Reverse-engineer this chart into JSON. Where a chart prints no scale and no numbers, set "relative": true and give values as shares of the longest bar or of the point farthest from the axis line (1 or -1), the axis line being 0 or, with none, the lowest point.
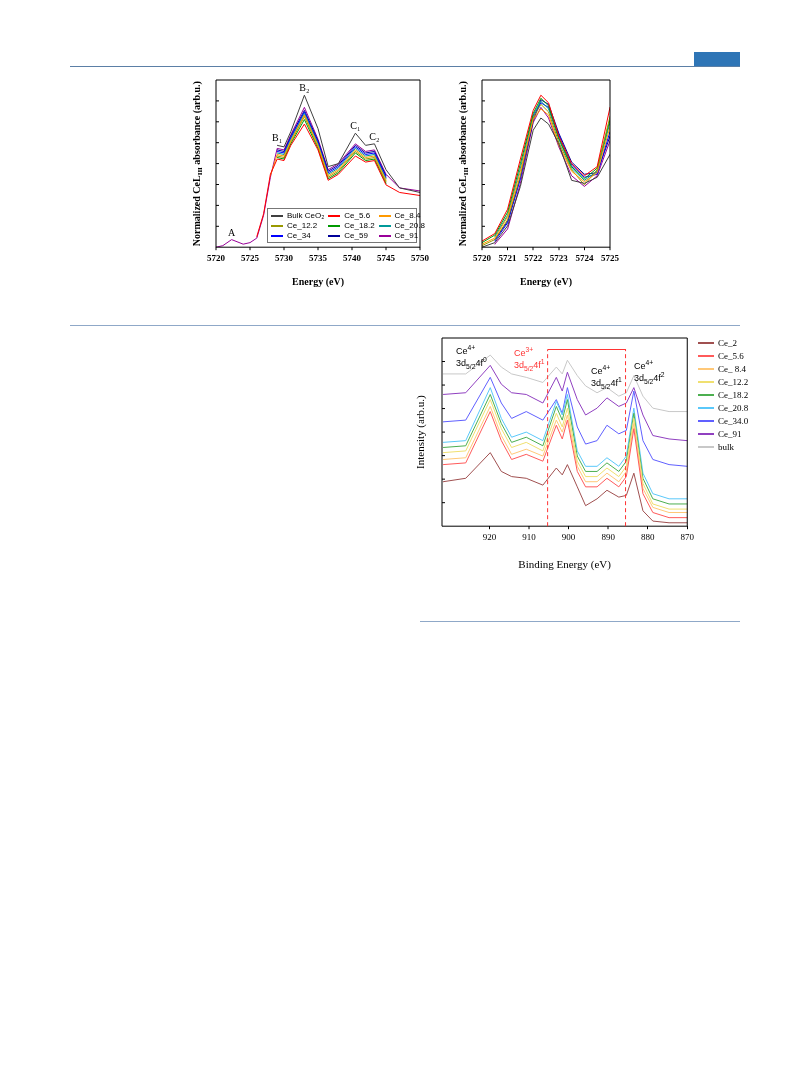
{
  "chart_data": [
    {
      "type": "line",
      "relative": true,
      "xlabel": "Energy (eV)",
      "ylabel": "Normalized CeL$_{III}$ absorbance (arb.u.)",
      "xlim": [
        5720,
        5750
      ],
      "xticks": [
        5720,
        5725,
        5730,
        5735,
        5740,
        5745,
        5750
      ],
      "tick_labels": "x",
      "legend": "bottom right",
      "x": [
        5720,
        5721,
        5722.3,
        5724,
        5725,
        5726,
        5727,
        5728,
        5729,
        5730,
        5731,
        5733,
        5735,
        5736.5,
        5738,
        5740.5,
        5742,
        5743.3,
        5745,
        5747,
        5750
      ],
      "annotations": [
        {
          "text": "A",
          "x": 5722.3,
          "y": 0.05
        },
        {
          "text": "B₁",
          "x": 5729,
          "y": 0.67
        },
        {
          "text": "B₂",
          "x": 5733,
          "y": 1.0
        },
        {
          "text": "C₁",
          "x": 5740.5,
          "y": 0.75
        },
        {
          "text": "C₂",
          "x": 5743.3,
          "y": 0.68
        }
      ],
      "series": [
        {
          "name": "Bulk CeO₂",
          "color": "#404040",
          "values": [
            null,
            null,
            null,
            null,
            null,
            null,
            null,
            null,
            0.67,
            0.66,
            0.76,
            1.0,
            0.78,
            0.53,
            0.55,
            0.75,
            0.67,
            0.68,
            0.51,
            0.39,
            0.36
          ]
        },
        {
          "name": "Ce_5.6",
          "color": "#ff0000",
          "values": [
            null,
            null,
            null,
            null,
            null,
            0.07,
            0.22,
            0.48,
            0.58,
            0.57,
            0.67,
            0.81,
            0.64,
            0.44,
            0.48,
            0.6,
            0.56,
            0.57,
            0.41,
            0.36,
            0.34
          ]
        },
        {
          "name": "Ce_8.4",
          "color": "#ff9900",
          "values": [
            null,
            null,
            null,
            null,
            null,
            null,
            null,
            0.47,
            0.61,
            0.6,
            0.7,
            0.87,
            0.67,
            0.47,
            0.51,
            0.64,
            0.59,
            0.6,
            0.44,
            null,
            null
          ]
        },
        {
          "name": "Ce_12.2",
          "color": "#999900",
          "values": [
            null,
            null,
            null,
            null,
            null,
            null,
            null,
            null,
            0.6,
            0.59,
            0.69,
            0.86,
            0.66,
            0.46,
            0.5,
            0.63,
            0.58,
            0.59,
            0.43,
            null,
            null
          ]
        },
        {
          "name": "Ce_18.2",
          "color": "#009900",
          "values": [
            null,
            null,
            null,
            null,
            null,
            null,
            null,
            null,
            0.59,
            0.58,
            0.68,
            0.84,
            0.65,
            0.45,
            0.49,
            0.62,
            0.57,
            0.58,
            0.42,
            null,
            null
          ]
        },
        {
          "name": "Ce_20.8",
          "color": "#009999",
          "values": [
            null,
            null,
            null,
            null,
            null,
            null,
            null,
            null,
            0.62,
            0.61,
            0.71,
            0.88,
            0.68,
            0.48,
            0.52,
            0.65,
            0.6,
            0.61,
            0.45,
            null,
            null
          ]
        },
        {
          "name": "Ce_34",
          "color": "#0000ff",
          "values": [
            null,
            null,
            null,
            null,
            null,
            null,
            null,
            null,
            0.63,
            0.62,
            0.72,
            0.89,
            0.69,
            0.49,
            0.53,
            0.66,
            0.61,
            0.62,
            0.46,
            null,
            null
          ]
        },
        {
          "name": "Ce_59",
          "color": "#000099",
          "values": [
            null,
            null,
            null,
            null,
            null,
            null,
            null,
            null,
            0.64,
            0.63,
            0.73,
            0.9,
            0.7,
            0.5,
            0.54,
            0.67,
            0.62,
            0.63,
            0.47,
            null,
            null
          ]
        },
        {
          "name": "Ce_91",
          "color": "#990099",
          "values": [
            0,
            0.01,
            0.05,
            0.02,
            0.03,
            0.06,
            0.21,
            0.46,
            0.65,
            0.64,
            0.74,
            0.92,
            0.71,
            0.51,
            0.55,
            0.68,
            0.63,
            0.64,
            0.48,
            0.39,
            0.37
          ]
        }
      ]
    },
    {
      "type": "line",
      "relative": true,
      "xlabel": "Energy (eV)",
      "ylabel": "Normalized CeL$_{III}$ absorbance (arb.u.)",
      "xlim": [
        5720,
        5725
      ],
      "xticks": [
        5720,
        5721,
        5722,
        5723,
        5724,
        5725
      ],
      "tick_labels": "x",
      "x": [
        5720,
        5720.5,
        5721,
        5721.5,
        5722,
        5722.3,
        5722.6,
        5723,
        5723.5,
        5724,
        5724.5,
        5725
      ],
      "series": [
        {
          "color": "#404040",
          "values": [
            0,
            0.03,
            0.14,
            0.4,
            0.77,
            0.85,
            0.81,
            0.68,
            0.44,
            0.42,
            0.46,
            0.61
          ]
        },
        {
          "color": "#ff0000",
          "values": [
            0.04,
            0.09,
            0.25,
            0.58,
            0.9,
            1.0,
            0.95,
            0.73,
            0.55,
            0.47,
            0.53,
            0.92
          ]
        },
        {
          "color": "#ff9900",
          "values": [
            0.02,
            0.06,
            0.2,
            0.5,
            0.84,
            0.91,
            0.87,
            0.67,
            0.5,
            0.43,
            0.49,
            0.79
          ]
        },
        {
          "color": "#999900",
          "values": [
            0.01,
            0.05,
            0.18,
            0.47,
            0.85,
            0.94,
            0.89,
            0.69,
            0.51,
            0.41,
            0.51,
            0.86
          ]
        },
        {
          "color": "#009900",
          "values": [
            0.03,
            0.08,
            0.23,
            0.55,
            0.88,
            0.98,
            0.93,
            0.72,
            0.53,
            0.45,
            0.52,
            0.84
          ]
        },
        {
          "color": "#009999",
          "values": [
            null,
            0.07,
            0.21,
            0.52,
            0.87,
            0.96,
            0.91,
            0.71,
            0.52,
            0.44,
            0.5,
            0.82
          ]
        },
        {
          "color": "#0000ff",
          "values": [
            null,
            0.04,
            0.16,
            0.45,
            0.86,
            0.95,
            0.92,
            0.74,
            0.54,
            0.46,
            0.48,
            0.76
          ]
        },
        {
          "color": "#000099",
          "values": [
            null,
            0.05,
            0.17,
            0.46,
            0.83,
            0.97,
            0.94,
            0.75,
            0.56,
            0.48,
            0.49,
            0.73
          ]
        },
        {
          "color": "#990099",
          "values": [
            null,
            0.02,
            0.12,
            0.42,
            0.82,
            0.92,
            0.85,
            0.66,
            0.47,
            0.4,
            0.47,
            0.7
          ]
        }
      ]
    },
    {
      "type": "line",
      "relative": true,
      "xlabel": "Binding Energy (eV)",
      "ylabel": "Intensity (arb.u.)",
      "xlim": [
        932,
        870
      ],
      "xticks": [
        920,
        910,
        900,
        890,
        880,
        870
      ],
      "tick_labels": "x",
      "legend": "right",
      "x": [
        931.7,
        926,
        919.8,
        917,
        914.4,
        910.7,
        906.5,
        903.1,
        901.6,
        900.3,
        897.8,
        895.7,
        892.8,
        890.3,
        887.3,
        885.4,
        883.5,
        881.2,
        878.7,
        874.6,
        870
      ],
      "ref_lines": [
        {
          "axis": "x",
          "value": 905.3,
          "color": "#ff3333",
          "line_style": "dashed",
          "label": "Ce$^{3+}$ 3d$_{5/2}$4f$^{1}$"
        },
        {
          "axis": "x",
          "value": 885.6,
          "color": "#ff3333",
          "line_style": "dashed"
        }
      ],
      "annotations": [
        "Ce$^{4+}$ 3d$_{5/2}$4f$^{0}$",
        "Ce$^{4+}$ 3d$_{5/2}$4f$^{1}$",
        "Ce$^{4+}$ 3d$_{5/2}$4f$^{2}$"
      ],
      "series": [
        {
          "name": "Ce_2",
          "color": "#a05050",
          "values": [
            0.26,
            0.28,
            0.43,
            0.32,
            0.29,
            0.28,
            0.24,
            0.34,
            0.3,
            0.36,
            0.23,
            0.12,
            0.16,
            0.21,
            0.17,
            0.18,
            0.31,
            0.09,
            0.03,
            0.02,
            0.02
          ]
        },
        {
          "name": "Ce_5.6",
          "color": "#ff5a5a",
          "values": [
            0.36,
            0.37,
            0.67,
            0.5,
            0.39,
            0.42,
            0.38,
            0.59,
            0.51,
            0.62,
            0.32,
            0.23,
            0.23,
            0.28,
            0.23,
            0.29,
            0.57,
            0.19,
            0.08,
            0.05,
            0.05
          ]
        },
        {
          "name": "Ce_ 8.4",
          "color": "#ffc878",
          "values": [
            0.39,
            0.4,
            0.7,
            0.53,
            0.42,
            0.45,
            0.41,
            0.62,
            0.55,
            0.65,
            0.35,
            0.26,
            0.26,
            0.31,
            0.26,
            0.32,
            0.6,
            0.22,
            0.11,
            0.08,
            0.08
          ]
        },
        {
          "name": "Ce_12.2",
          "color": "#f0e070",
          "values": [
            0.43,
            0.44,
            0.74,
            0.57,
            0.46,
            0.49,
            0.44,
            0.66,
            0.58,
            0.69,
            0.38,
            0.29,
            0.29,
            0.34,
            0.29,
            0.35,
            0.63,
            0.25,
            0.13,
            0.1,
            0.1
          ]
        },
        {
          "name": "Ce_18.2",
          "color": "#4caf50",
          "values": [
            0.46,
            0.47,
            0.77,
            0.6,
            0.49,
            0.52,
            0.47,
            0.7,
            0.62,
            0.74,
            0.41,
            0.32,
            0.32,
            0.37,
            0.32,
            0.38,
            0.66,
            0.28,
            0.16,
            0.13,
            0.13
          ]
        },
        {
          "name": "Ce_20.8",
          "color": "#5ac8fa",
          "values": [
            0.49,
            0.5,
            0.81,
            0.63,
            0.52,
            0.55,
            0.5,
            0.73,
            0.65,
            0.77,
            0.44,
            0.35,
            0.35,
            0.4,
            0.35,
            0.41,
            0.69,
            0.31,
            0.19,
            0.16,
            0.16
          ]
        },
        {
          "name": "Ce_34.0",
          "color": "#6060ff",
          "values": [
            0.61,
            0.62,
            0.87,
            0.72,
            0.63,
            0.67,
            0.62,
            0.74,
            0.66,
            0.81,
            0.58,
            0.48,
            0.5,
            0.59,
            0.54,
            0.56,
            0.79,
            0.5,
            0.39,
            0.36,
            0.35
          ]
        },
        {
          "name": "Ce_91",
          "color": "#9040c0",
          "values": [
            0.77,
            0.78,
            0.94,
            0.83,
            0.78,
            0.77,
            0.72,
            0.87,
            0.79,
            0.9,
            0.74,
            0.65,
            0.69,
            0.75,
            0.7,
            0.72,
            0.81,
            0.65,
            0.53,
            0.51,
            0.5
          ]
        },
        {
          "name": "bulk",
          "color": "#c8c8c8",
          "values": [
            0.89,
            0.89,
            1.0,
            0.93,
            0.89,
            0.87,
            0.84,
            0.93,
            0.89,
            0.97,
            0.88,
            0.82,
            0.78,
            0.81,
            0.76,
            0.78,
            0.88,
            0.76,
            0.69,
            0.67,
            0.67
          ]
        }
      ]
    }
  ]
}
